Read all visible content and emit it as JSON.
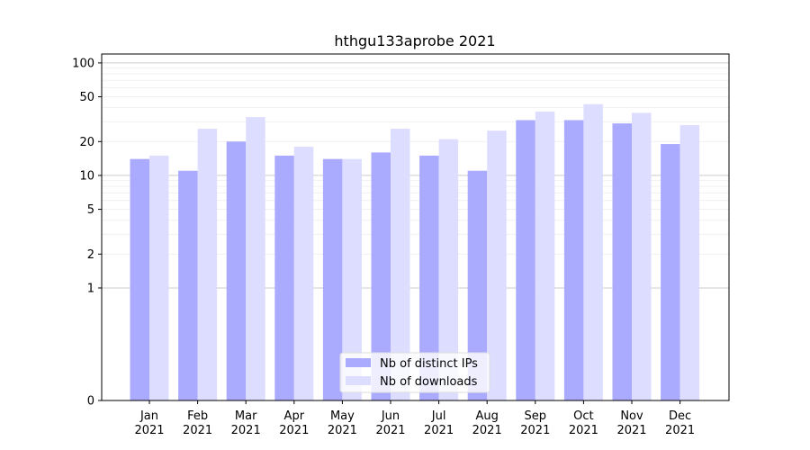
{
  "chart_data": {
    "type": "bar",
    "title": "hthgu133aprobe 2021",
    "xlabel": "",
    "ylabel": "",
    "y_scale": "symlog",
    "ylim": [
      0,
      120
    ],
    "yticks": [
      0,
      1,
      2,
      5,
      10,
      20,
      50,
      100
    ],
    "ytick_labels": [
      "0",
      "1",
      "2",
      "5",
      "10",
      "20",
      "50",
      "100"
    ],
    "grid": "horizontal",
    "legend_position": "bottom-center",
    "categories": [
      "Jan\n2021",
      "Feb\n2021",
      "Mar\n2021",
      "Apr\n2021",
      "May\n2021",
      "Jun\n2021",
      "Jul\n2021",
      "Aug\n2021",
      "Sep\n2021",
      "Oct\n2021",
      "Nov\n2021",
      "Dec\n2021"
    ],
    "series": [
      {
        "name": "Nb of distinct IPs",
        "color": "#aaaaff",
        "values": [
          14,
          11,
          20,
          15,
          14,
          16,
          15,
          11,
          31,
          31,
          29,
          19
        ]
      },
      {
        "name": "Nb of downloads",
        "color": "#ddddff",
        "values": [
          15,
          26,
          33,
          18,
          14,
          26,
          21,
          25,
          37,
          43,
          36,
          28
        ]
      }
    ]
  }
}
